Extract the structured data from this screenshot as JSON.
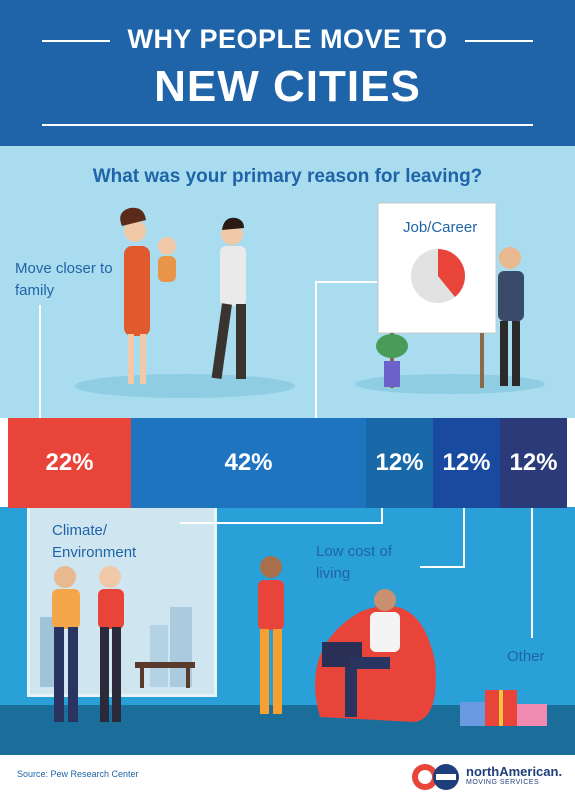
{
  "header": {
    "title_line1": "WHY PEOPLE MOVE TO",
    "title_line2": "NEW CITIES"
  },
  "question": "What was your primary reason for leaving?",
  "labels": {
    "family": "Move closer to family",
    "job": "Job/Career",
    "climate": "Climate/ Environment",
    "cost": "Low cost of living",
    "other": "Other"
  },
  "footer": {
    "source": "Source: Pew Research Center",
    "logo_name": "northAmerican.",
    "logo_sub": "MOVING SERVICES"
  },
  "colors": {
    "header": "#1f64a8",
    "upper": "#a8dcee",
    "lower": "#29a0d8",
    "family": "#e8443a",
    "job": "#1f74c0",
    "climate": "#1968a8",
    "cost": "#1a4aa0",
    "other": "#2b3a78"
  },
  "chart_data": {
    "type": "bar",
    "stacked": true,
    "orientation": "horizontal",
    "title": "What was your primary reason for leaving?",
    "categories": [
      "Move closer to family",
      "Job/Career",
      "Climate/Environment",
      "Low cost of living",
      "Other"
    ],
    "values": [
      22,
      42,
      12,
      12,
      12
    ],
    "labels": [
      "22%",
      "42%",
      "12%",
      "12%",
      "12%"
    ],
    "unit": "%"
  }
}
